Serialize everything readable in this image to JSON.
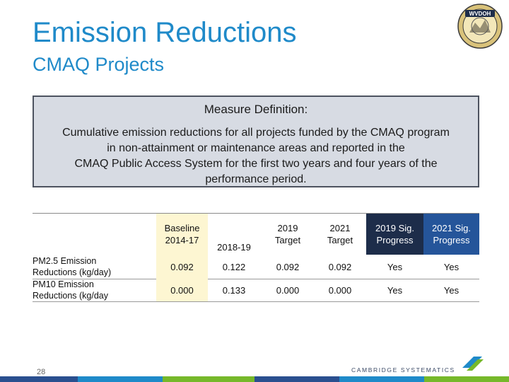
{
  "header": {
    "title": "Emission Reductions",
    "subtitle": "CMAQ Projects",
    "logo_text": "WVDOH"
  },
  "definition": {
    "heading": "Measure Definition:",
    "lines": [
      "Cumulative emission reductions for all projects funded by the CMAQ program",
      "in non-attainment or maintenance areas and reported in the",
      "CMAQ Public Access System for the first two years and four years of the",
      "performance period."
    ]
  },
  "table": {
    "columns": [
      {
        "line1": "Baseline",
        "line2": "2014-17"
      },
      {
        "line1": "",
        "line2": "2018-19"
      },
      {
        "line1": "2019",
        "line2": "Target"
      },
      {
        "line1": "2021",
        "line2": "Target"
      },
      {
        "line1": "2019 Sig.",
        "line2": "Progress"
      },
      {
        "line1": "2021 Sig.",
        "line2": "Progress"
      }
    ],
    "rows": [
      {
        "label_line1": "PM2.5 Emission",
        "label_line2": "Reductions (kg/day)",
        "values": [
          "0.092",
          "0.122",
          "0.092",
          "0.092",
          "Yes",
          "Yes"
        ]
      },
      {
        "label_line1": "PM10 Emission",
        "label_line2": "Reductions  (kg/day",
        "values": [
          "0.000",
          "0.133",
          "0.000",
          "0.000",
          "Yes",
          "Yes"
        ]
      }
    ]
  },
  "footer": {
    "page_number": "28",
    "brand": "CAMBRIDGE SYSTEMATICS",
    "colors": [
      "#2a4f8f",
      "#1f8ac9",
      "#76b82a",
      "#2a4f8f",
      "#1f8ac9",
      "#76b82a"
    ]
  },
  "colors": {
    "title": "#1f8ac9",
    "definition_bg": "#d7dbe3",
    "baseline_bg": "#fdf6d2",
    "sig2019_bg": "#1d2d4a",
    "sig2021_bg": "#25559a"
  }
}
